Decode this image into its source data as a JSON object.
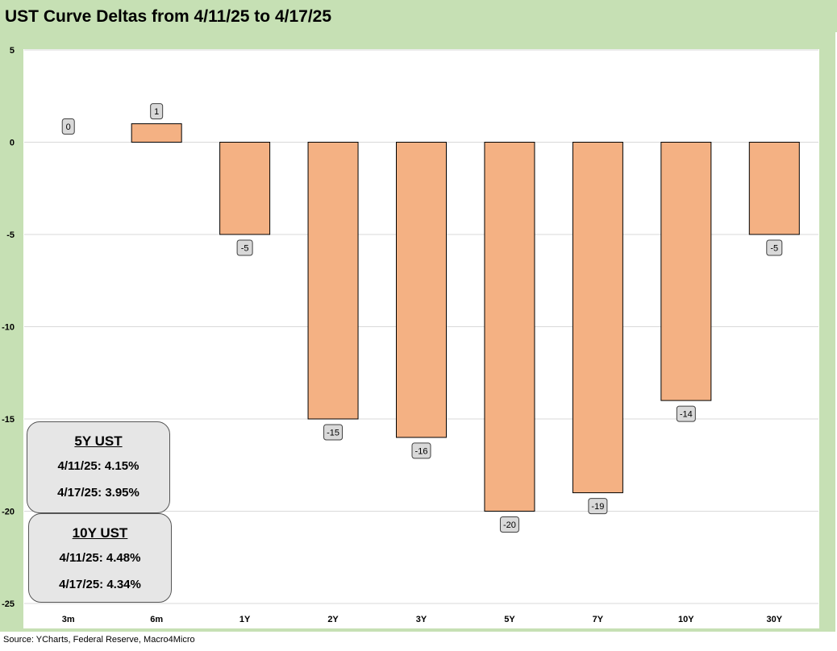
{
  "title": "UST Curve Deltas from 4/11/25 to 4/17/25",
  "source": "Source: YCharts, Federal Reserve, Macro4Micro",
  "colors": {
    "bar_fill": "#f4b183",
    "bar_stroke": "#000000",
    "frame_bg": "#c6e0b4",
    "label_bg": "#d9d9d9",
    "grid": "#d9d9d9"
  },
  "info_boxes": [
    {
      "header": "5Y UST",
      "rows": [
        "4/11/25:  4.15%",
        "4/17/25:  3.95%"
      ]
    },
    {
      "header": "10Y UST",
      "rows": [
        "4/11/25:  4.48%",
        "4/17/25:  4.34%"
      ]
    }
  ],
  "chart_data": {
    "type": "bar",
    "title": "UST Curve Deltas from 4/11/25 to 4/17/25",
    "xlabel": "",
    "ylabel": "",
    "categories": [
      "3m",
      "6m",
      "1Y",
      "2Y",
      "3Y",
      "5Y",
      "7Y",
      "10Y",
      "30Y"
    ],
    "values": [
      0,
      1,
      -5,
      -15,
      -16,
      -20,
      -19,
      -14,
      -5
    ],
    "ylim": [
      -25,
      5
    ],
    "yticks": [
      5,
      0,
      -5,
      -10,
      -15,
      -20,
      -25
    ],
    "grid": true,
    "data_labels": true
  }
}
